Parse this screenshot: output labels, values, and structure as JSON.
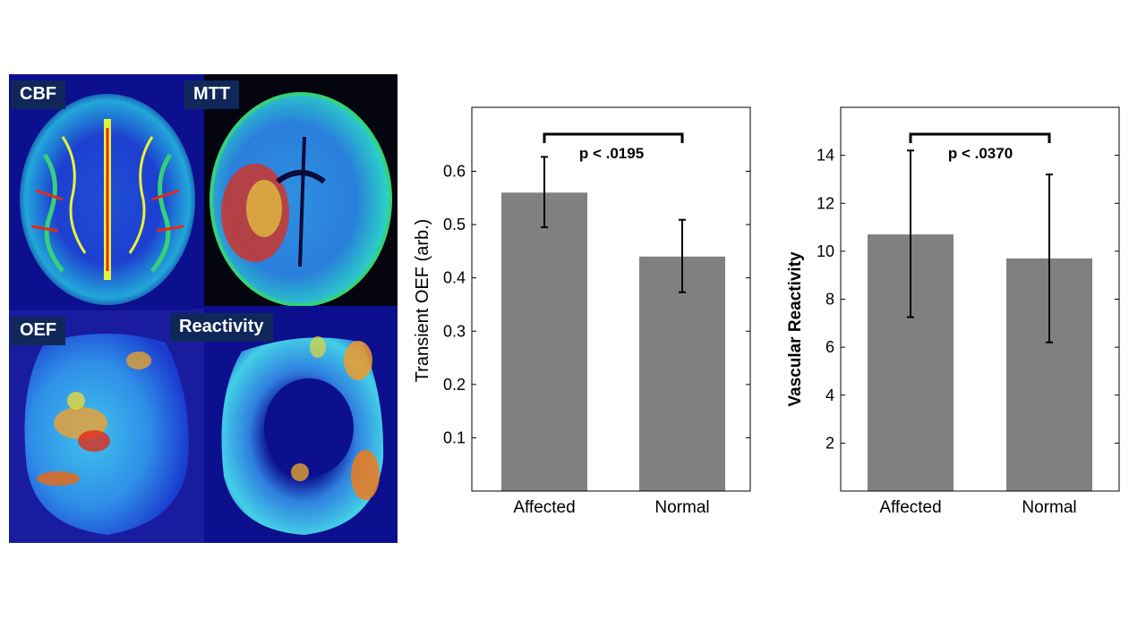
{
  "panels": {
    "labels": [
      "CBF",
      "MTT",
      "OEF",
      "Reactivity"
    ]
  },
  "colors": {
    "bar": "#808080",
    "label_bg": "#10275a",
    "label_text": "#ffffff",
    "map_background": "#0c0f8e",
    "axis": "#000000"
  },
  "chart_data": [
    {
      "type": "bar",
      "categories": [
        "Affected",
        "Normal"
      ],
      "values": [
        0.56,
        0.44
      ],
      "error_low": [
        0.495,
        0.373
      ],
      "error_high": [
        0.627,
        0.509
      ],
      "ylabel": "Transient OEF (arb.)",
      "xlabel": "",
      "ylim": [
        0,
        0.72
      ],
      "yticks": [
        "0.1",
        "0.2",
        "0.3",
        "0.4",
        "0.5",
        "0.6"
      ],
      "ytick_values": [
        0.1,
        0.2,
        0.3,
        0.4,
        0.5,
        0.6
      ],
      "annotation": "p < .0195",
      "grid": false
    },
    {
      "type": "bar",
      "categories": [
        "Affected",
        "Normal"
      ],
      "values": [
        10.7,
        9.7
      ],
      "error_low": [
        7.25,
        6.2
      ],
      "error_high": [
        14.2,
        13.2
      ],
      "ylabel": "Vascular Reactivity",
      "xlabel": "",
      "ylim": [
        0,
        16
      ],
      "yticks": [
        "2",
        "4",
        "6",
        "8",
        "10",
        "12",
        "14"
      ],
      "ytick_values": [
        2,
        4,
        6,
        8,
        10,
        12,
        14
      ],
      "annotation": "p < .0370",
      "grid": false
    }
  ]
}
